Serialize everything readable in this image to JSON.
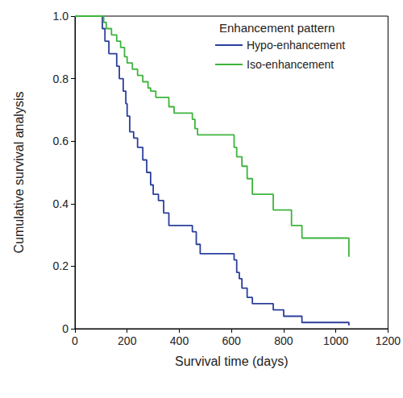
{
  "chart_data": {
    "type": "step",
    "xlabel": "Survival time (days)",
    "ylabel": "Cumulative survival analysis",
    "legend_title": "Enhancement pattern",
    "legend": "upper right",
    "grid": false,
    "xlim": [
      0,
      1200
    ],
    "xticks": [
      0,
      200,
      400,
      600,
      800,
      1000,
      1200
    ],
    "ylim": [
      0,
      1
    ],
    "yticks": [
      0,
      {
        "value": 0.2,
        "label": "0.2"
      },
      {
        "value": 0.4,
        "label": "0.4"
      },
      {
        "value": 0.6,
        "label": "0.6"
      },
      {
        "value": 0.8,
        "label": "0.8"
      },
      {
        "value": 1,
        "label": "1.0"
      }
    ],
    "series": [
      {
        "name": "Hypo-enhancement",
        "color": "#2b3f9c",
        "x": [
          0,
          105,
          115,
          130,
          160,
          170,
          185,
          195,
          200,
          210,
          225,
          240,
          260,
          275,
          290,
          300,
          320,
          340,
          360,
          450,
          465,
          480,
          610,
          620,
          630,
          640,
          660,
          680,
          760,
          800,
          870,
          1045,
          1050
        ],
        "values": [
          1,
          0.96,
          0.92,
          0.88,
          0.84,
          0.8,
          0.76,
          0.72,
          0.68,
          0.63,
          0.61,
          0.58,
          0.54,
          0.5,
          0.46,
          0.43,
          0.41,
          0.37,
          0.33,
          0.31,
          0.27,
          0.24,
          0.22,
          0.18,
          0.16,
          0.13,
          0.1,
          0.08,
          0.06,
          0.04,
          0.02,
          0.02,
          0.01
        ]
      },
      {
        "name": "Iso-enhancement",
        "color": "#3db43c",
        "x": [
          0,
          110,
          120,
          140,
          160,
          175,
          190,
          200,
          220,
          240,
          260,
          280,
          290,
          310,
          360,
          380,
          450,
          460,
          470,
          610,
          620,
          640,
          660,
          680,
          760,
          830,
          870,
          1045,
          1050
        ],
        "values": [
          1,
          0.98,
          0.96,
          0.94,
          0.92,
          0.9,
          0.87,
          0.85,
          0.83,
          0.81,
          0.79,
          0.77,
          0.76,
          0.74,
          0.71,
          0.69,
          0.67,
          0.64,
          0.62,
          0.58,
          0.55,
          0.52,
          0.48,
          0.43,
          0.38,
          0.33,
          0.29,
          0.29,
          0.23
        ]
      }
    ]
  }
}
